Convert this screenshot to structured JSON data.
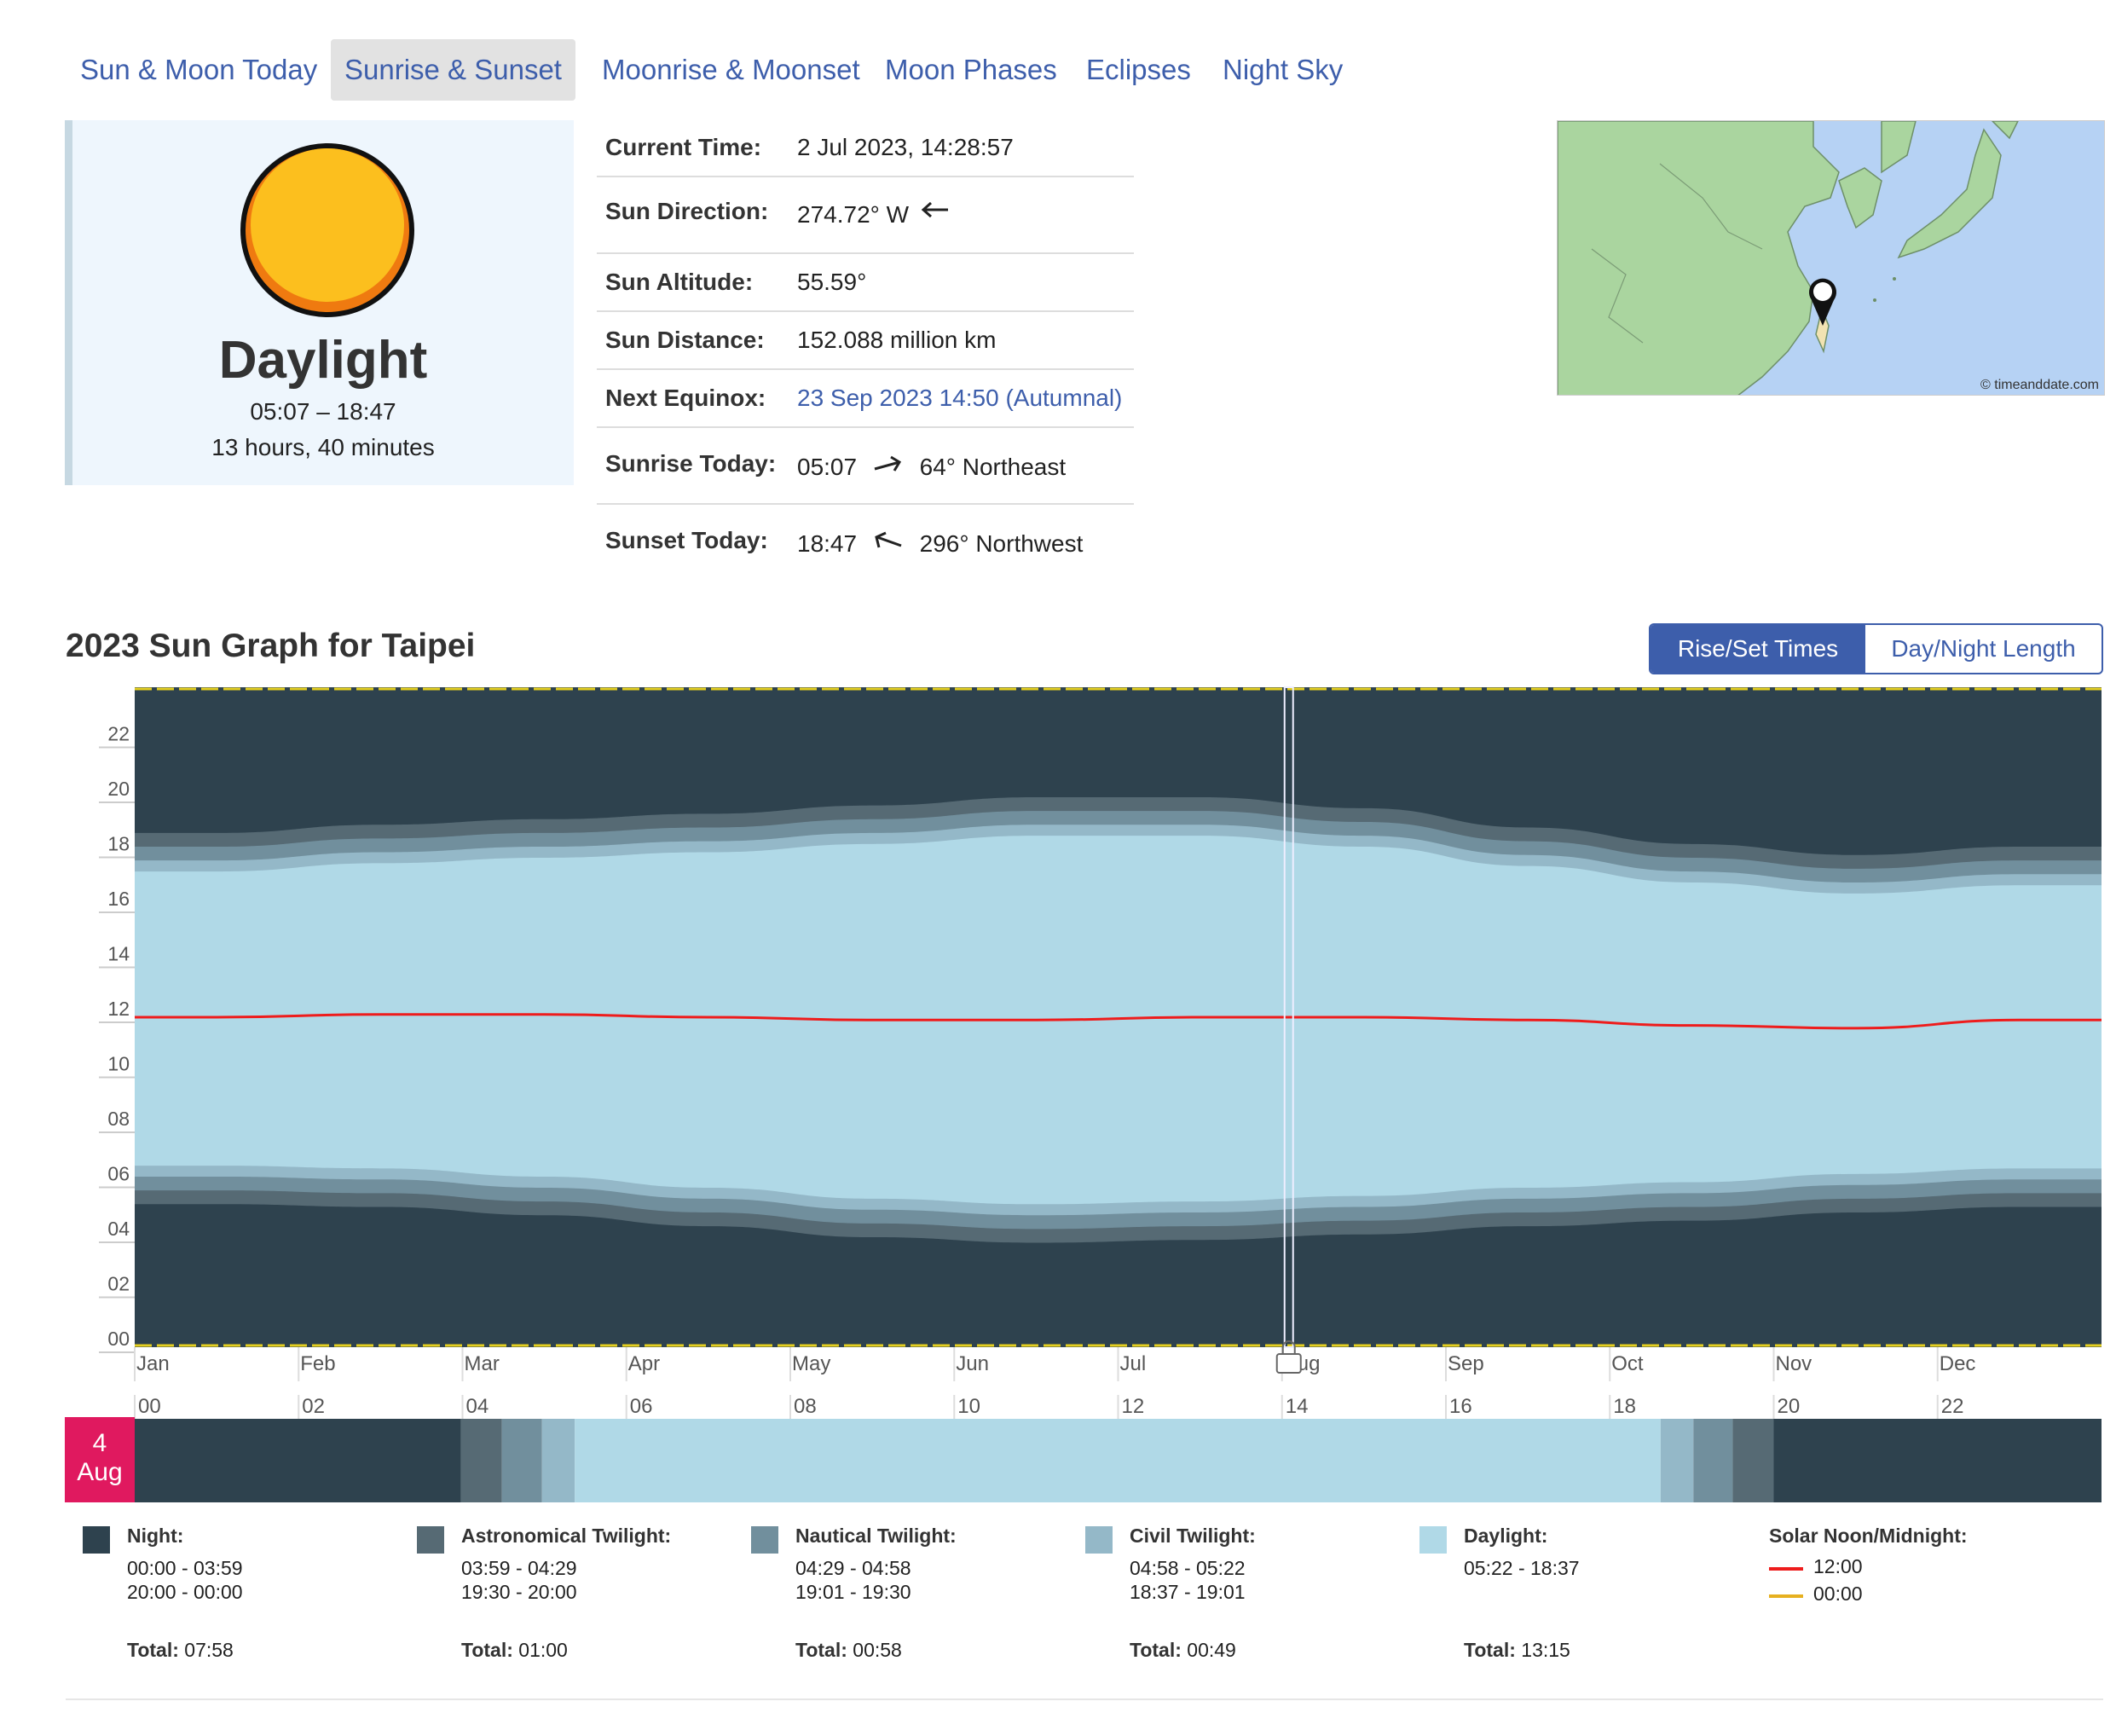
{
  "tabs": [
    {
      "label": "Sun & Moon Today",
      "active": false
    },
    {
      "label": "Sunrise & Sunset",
      "active": true
    },
    {
      "label": "Moonrise & Moonset",
      "active": false
    },
    {
      "label": "Moon Phases",
      "active": false
    },
    {
      "label": "Eclipses",
      "active": false
    },
    {
      "label": "Night Sky",
      "active": false
    }
  ],
  "daylight_card": {
    "state": "Daylight",
    "range": "05:07 – 18:47",
    "duration": "13 hours, 40 minutes"
  },
  "info": {
    "current_time": {
      "label": "Current Time:",
      "value": "2 Jul 2023, 14:28:57"
    },
    "sun_direction": {
      "label": "Sun Direction:",
      "value": "274.72° W"
    },
    "sun_altitude": {
      "label": "Sun Altitude:",
      "value": "55.59°"
    },
    "sun_distance": {
      "label": "Sun Distance:",
      "value": "152.088 million km"
    },
    "next_equinox": {
      "label": "Next Equinox:",
      "value": "23 Sep 2023 14:50 (Autumnal)"
    },
    "sunrise_today": {
      "label": "Sunrise Today:",
      "time": "05:07",
      "direction": "64° Northeast"
    },
    "sunset_today": {
      "label": "Sunset Today:",
      "time": "18:47",
      "direction": "296° Northwest"
    }
  },
  "map": {
    "credit": "© timeanddate.com"
  },
  "graph": {
    "title": "2023 Sun Graph for Taipei",
    "toggle": {
      "rise_set": "Rise/Set Times",
      "day_night": "Day/Night Length"
    },
    "colors": {
      "night": "#2e424e",
      "astronomical": "#566a74",
      "nautical": "#718f9d",
      "civil": "#94b8c8",
      "daylight": "#b0d9e7",
      "solar_noon": "#ee1c1c",
      "solar_midnight": "#e6d020"
    }
  },
  "chart_data": {
    "type": "area",
    "title": "2023 Sun Graph for Taipei",
    "x": [
      "Jan",
      "Feb",
      "Mar",
      "Apr",
      "May",
      "Jun",
      "Jul",
      "Aug",
      "Sep",
      "Oct",
      "Nov",
      "Dec"
    ],
    "ylim": [
      0,
      24
    ],
    "yticks": [
      "00",
      "02",
      "04",
      "06",
      "08",
      "10",
      "12",
      "14",
      "16",
      "18",
      "20",
      "22"
    ],
    "current_marker": "Aug",
    "series": [
      {
        "name": "Night",
        "astro_start": [
          5.2,
          5.1,
          4.8,
          4.4,
          4.0,
          3.8,
          3.9,
          4.1,
          4.4,
          4.6,
          4.9,
          5.1
        ],
        "astro_end": [
          18.7,
          19.0,
          19.2,
          19.4,
          19.7,
          20.0,
          20.0,
          19.6,
          18.9,
          18.3,
          17.9,
          18.2
        ]
      },
      {
        "name": "Astronomical Twilight",
        "start": [
          5.2,
          5.1,
          4.8,
          4.4,
          4.0,
          3.8,
          3.9,
          4.1,
          4.4,
          4.6,
          4.9,
          5.1
        ],
        "end": [
          18.7,
          19.0,
          19.2,
          19.4,
          19.7,
          20.0,
          20.0,
          19.6,
          18.9,
          18.3,
          17.9,
          18.2
        ]
      },
      {
        "name": "Nautical Twilight",
        "start": [
          5.7,
          5.6,
          5.3,
          4.9,
          4.5,
          4.3,
          4.4,
          4.6,
          4.9,
          5.1,
          5.4,
          5.6
        ],
        "end": [
          18.2,
          18.5,
          18.7,
          18.9,
          19.2,
          19.5,
          19.5,
          19.1,
          18.4,
          17.8,
          17.4,
          17.7
        ]
      },
      {
        "name": "Civil Twilight",
        "start": [
          6.2,
          6.1,
          5.8,
          5.4,
          5.0,
          4.8,
          4.9,
          5.1,
          5.4,
          5.6,
          5.9,
          6.1
        ],
        "end": [
          17.7,
          18.0,
          18.2,
          18.4,
          18.7,
          19.0,
          19.0,
          18.6,
          17.9,
          17.3,
          16.9,
          17.2
        ]
      },
      {
        "name": "Daylight",
        "start": [
          6.6,
          6.5,
          6.2,
          5.8,
          5.4,
          5.2,
          5.3,
          5.5,
          5.8,
          6.0,
          6.3,
          6.5
        ],
        "end": [
          17.3,
          17.6,
          17.8,
          18.0,
          18.3,
          18.6,
          18.6,
          18.2,
          17.5,
          16.9,
          16.5,
          16.8
        ]
      },
      {
        "name": "Solar Noon",
        "values": [
          12.0,
          12.1,
          12.1,
          12.0,
          11.9,
          11.9,
          12.0,
          12.0,
          11.9,
          11.7,
          11.6,
          11.9
        ]
      }
    ]
  },
  "day_strip": {
    "date_day": "4",
    "date_month": "Aug",
    "hour_ticks": [
      "00",
      "02",
      "04",
      "06",
      "08",
      "10",
      "12",
      "14",
      "16",
      "18",
      "20",
      "22"
    ],
    "segments": [
      {
        "phase": "night",
        "start": 0.0,
        "end": 3.98
      },
      {
        "phase": "astronomical",
        "start": 3.98,
        "end": 4.48
      },
      {
        "phase": "nautical",
        "start": 4.48,
        "end": 4.97
      },
      {
        "phase": "civil",
        "start": 4.97,
        "end": 5.37
      },
      {
        "phase": "daylight",
        "start": 5.37,
        "end": 18.62
      },
      {
        "phase": "civil",
        "start": 18.62,
        "end": 19.02
      },
      {
        "phase": "nautical",
        "start": 19.02,
        "end": 19.5
      },
      {
        "phase": "astronomical",
        "start": 19.5,
        "end": 20.0
      },
      {
        "phase": "night",
        "start": 20.0,
        "end": 24.0
      }
    ]
  },
  "legend": [
    {
      "title": "Night:",
      "lines": [
        "00:00 - 03:59",
        "20:00 - 00:00"
      ],
      "total_label": "Total:",
      "total": "07:58",
      "color": "#2e424e"
    },
    {
      "title": "Astronomical Twilight:",
      "lines": [
        "03:59 - 04:29",
        "19:30 - 20:00"
      ],
      "total_label": "Total:",
      "total": "01:00",
      "color": "#566a74"
    },
    {
      "title": "Nautical Twilight:",
      "lines": [
        "04:29 - 04:58",
        "19:01 - 19:30"
      ],
      "total_label": "Total:",
      "total": "00:58",
      "color": "#718f9d"
    },
    {
      "title": "Civil Twilight:",
      "lines": [
        "04:58 - 05:22",
        "18:37 - 19:01"
      ],
      "total_label": "Total:",
      "total": "00:49",
      "color": "#94b8c8"
    },
    {
      "title": "Daylight:",
      "lines": [
        "05:22 - 18:37"
      ],
      "total_label": "Total:",
      "total": "13:15",
      "color": "#b0d9e7"
    }
  ],
  "solar_legend": {
    "title": "Solar Noon/Midnight:",
    "noon": "12:00",
    "midnight": "00:00"
  }
}
